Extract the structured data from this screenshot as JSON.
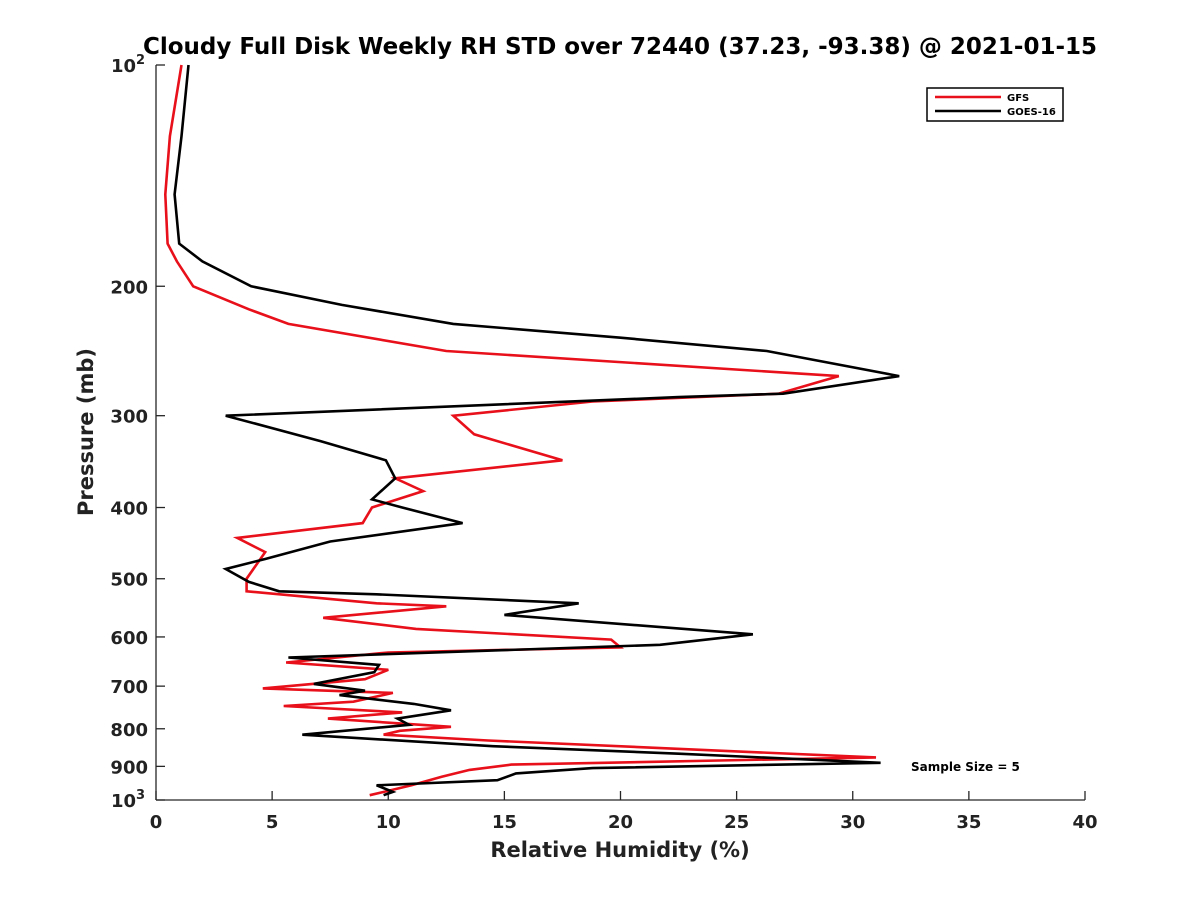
{
  "chart_data": {
    "type": "line",
    "title": "Cloudy Full Disk Weekly RH STD over 72440 (37.23, -93.38) @ 2021-01-15",
    "xlabel": "Relative Humidity (%)",
    "ylabel": "Pressure (mb)",
    "xlim": [
      0,
      40
    ],
    "ylim": [
      100,
      1000
    ],
    "yscale": "log",
    "yreversed": true,
    "grid": false,
    "legend_position": "top-right",
    "xticks": [
      0,
      5,
      10,
      15,
      20,
      25,
      30,
      35,
      40
    ],
    "yticks": [
      {
        "value": 100,
        "label": "10",
        "sup": "2"
      },
      {
        "value": 200,
        "label": "200",
        "sup": ""
      },
      {
        "value": 300,
        "label": "300",
        "sup": ""
      },
      {
        "value": 400,
        "label": "400",
        "sup": ""
      },
      {
        "value": 500,
        "label": "500",
        "sup": ""
      },
      {
        "value": 600,
        "label": "600",
        "sup": ""
      },
      {
        "value": 700,
        "label": "700",
        "sup": ""
      },
      {
        "value": 800,
        "label": "800",
        "sup": ""
      },
      {
        "value": 900,
        "label": "900",
        "sup": ""
      },
      {
        "value": 1000,
        "label": "10",
        "sup": "3"
      }
    ],
    "annotation": "Sample Size = 5",
    "series": [
      {
        "name": "GFS",
        "color": "#e8101a",
        "points": [
          [
            1.1,
            100
          ],
          [
            0.6,
            125
          ],
          [
            0.4,
            150
          ],
          [
            0.5,
            175
          ],
          [
            0.9,
            185
          ],
          [
            1.6,
            200
          ],
          [
            4.0,
            215
          ],
          [
            5.7,
            225
          ],
          [
            12.5,
            245
          ],
          [
            29.4,
            265
          ],
          [
            26.8,
            280
          ],
          [
            18.8,
            287
          ],
          [
            12.8,
            300
          ],
          [
            13.7,
            318
          ],
          [
            17.5,
            345
          ],
          [
            10.3,
            365
          ],
          [
            11.5,
            380
          ],
          [
            9.3,
            400
          ],
          [
            8.9,
            420
          ],
          [
            3.5,
            440
          ],
          [
            4.7,
            460
          ],
          [
            3.9,
            500
          ],
          [
            3.9,
            520
          ],
          [
            9.5,
            540
          ],
          [
            12.5,
            545
          ],
          [
            7.2,
            565
          ],
          [
            11.2,
            585
          ],
          [
            19.6,
            605
          ],
          [
            20.0,
            620
          ],
          [
            10.0,
            630
          ],
          [
            5.6,
            650
          ],
          [
            10.0,
            665
          ],
          [
            9.0,
            685
          ],
          [
            4.6,
            705
          ],
          [
            10.2,
            715
          ],
          [
            8.5,
            735
          ],
          [
            5.5,
            745
          ],
          [
            10.6,
            760
          ],
          [
            7.4,
            775
          ],
          [
            12.7,
            795
          ],
          [
            10.5,
            805
          ],
          [
            9.8,
            815
          ],
          [
            14.3,
            830
          ],
          [
            25.5,
            860
          ],
          [
            31.0,
            875
          ],
          [
            15.3,
            895
          ],
          [
            13.5,
            910
          ],
          [
            12.3,
            930
          ],
          [
            11.0,
            955
          ],
          [
            9.2,
            985
          ]
        ]
      },
      {
        "name": "GOES-16",
        "color": "#000000",
        "points": [
          [
            1.4,
            100
          ],
          [
            1.1,
            125
          ],
          [
            0.8,
            150
          ],
          [
            1.0,
            175
          ],
          [
            2.0,
            185
          ],
          [
            4.1,
            200
          ],
          [
            8.0,
            212
          ],
          [
            12.8,
            225
          ],
          [
            20.0,
            235
          ],
          [
            26.3,
            245
          ],
          [
            32.0,
            265
          ],
          [
            27.0,
            280
          ],
          [
            22.5,
            283
          ],
          [
            3.0,
            300
          ],
          [
            7.1,
            325
          ],
          [
            9.9,
            345
          ],
          [
            10.3,
            365
          ],
          [
            9.3,
            390
          ],
          [
            10.6,
            400
          ],
          [
            13.2,
            420
          ],
          [
            7.5,
            445
          ],
          [
            4.7,
            470
          ],
          [
            3.0,
            485
          ],
          [
            4.0,
            505
          ],
          [
            5.3,
            520
          ],
          [
            9.5,
            525
          ],
          [
            18.2,
            540
          ],
          [
            15.0,
            560
          ],
          [
            25.7,
            595
          ],
          [
            21.7,
            615
          ],
          [
            5.7,
            640
          ],
          [
            9.6,
            655
          ],
          [
            9.4,
            670
          ],
          [
            6.8,
            695
          ],
          [
            9.0,
            710
          ],
          [
            7.9,
            720
          ],
          [
            11.1,
            740
          ],
          [
            12.7,
            755
          ],
          [
            10.4,
            775
          ],
          [
            10.9,
            790
          ],
          [
            6.3,
            815
          ],
          [
            14.5,
            845
          ],
          [
            22.5,
            865
          ],
          [
            31.2,
            890
          ],
          [
            18.8,
            905
          ],
          [
            15.5,
            920
          ],
          [
            14.7,
            940
          ],
          [
            9.5,
            955
          ],
          [
            10.2,
            975
          ],
          [
            9.8,
            985
          ]
        ]
      }
    ]
  }
}
